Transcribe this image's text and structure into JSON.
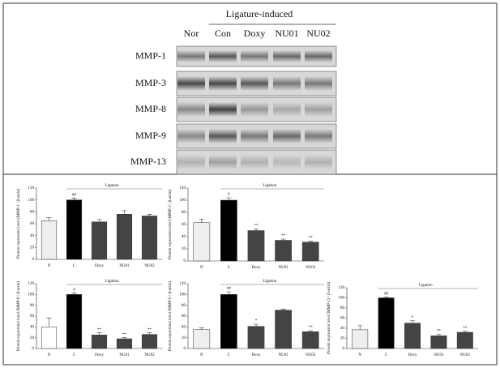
{
  "blot": {
    "group_label": "Ligature-induced",
    "columns": [
      "Nor",
      "Con",
      "Doxy",
      "NU01",
      "NU02"
    ],
    "rows": [
      "MMP-1",
      "MMP-3",
      "MMP-8",
      "MMP-9",
      "MMP-13"
    ]
  },
  "chart_data": [
    {
      "type": "bar",
      "title": "Ligation",
      "y_label": "Protein expression level (MMP-1 / β-actin)",
      "categories": [
        "N",
        "C",
        "Doxy",
        "NU01",
        "NU02"
      ],
      "values": [
        65,
        100,
        63,
        76,
        73
      ],
      "errors": [
        5,
        3,
        4,
        6,
        3
      ],
      "annotations": [
        null,
        "##",
        null,
        null,
        null
      ],
      "colors": [
        "#eeeeee",
        "#000000",
        "#444444",
        "#444444",
        "#444444"
      ],
      "ylim": [
        0,
        120
      ],
      "yticks": [
        0,
        20,
        40,
        60,
        80,
        100,
        120
      ]
    },
    {
      "type": "bar",
      "title": "Ligation",
      "y_label": "Protein expression level (MMP-3 / β-actin)",
      "categories": [
        "N",
        "C",
        "Doxy",
        "NU01",
        "NU02"
      ],
      "values": [
        63,
        100,
        50,
        34,
        31
      ],
      "errors": [
        6,
        4,
        3,
        2,
        2
      ],
      "annotations": [
        null,
        "#",
        "**",
        "**",
        "**"
      ],
      "colors": [
        "#eeeeee",
        "#000000",
        "#444444",
        "#444444",
        "#444444"
      ],
      "ylim": [
        0,
        120
      ],
      "yticks": [
        0,
        20,
        40,
        60,
        80,
        100,
        120
      ]
    },
    {
      "type": "bar",
      "title": "Ligation",
      "y_label": "Protein expression level (MMP-8 / β-actin)",
      "categories": [
        "N",
        "C",
        "Doxy",
        "NU01",
        "NU02"
      ],
      "values": [
        40,
        100,
        25,
        18,
        26
      ],
      "errors": [
        16,
        3,
        4,
        2,
        3
      ],
      "annotations": [
        null,
        "#",
        "**",
        "**",
        "**"
      ],
      "colors": [
        "#ffffff",
        "#000000",
        "#444444",
        "#444444",
        "#444444"
      ],
      "ylim": [
        0,
        120
      ],
      "yticks": [
        0,
        20,
        40,
        60,
        80,
        100,
        120
      ]
    },
    {
      "type": "bar",
      "title": "Ligation",
      "y_label": "Protein expression level (MMP-9 / β-actin)",
      "categories": [
        "N",
        "C",
        "Doxy",
        "NU01",
        "NU02"
      ],
      "values": [
        35,
        100,
        41,
        71,
        31
      ],
      "errors": [
        3,
        5,
        4,
        2,
        2
      ],
      "annotations": [
        null,
        "##",
        "*",
        null,
        "**"
      ],
      "colors": [
        "#eeeeee",
        "#000000",
        "#444444",
        "#444444",
        "#444444"
      ],
      "ylim": [
        0,
        120
      ],
      "yticks": [
        0,
        20,
        40,
        60,
        80,
        100,
        120
      ]
    },
    {
      "type": "bar",
      "title": "Ligation",
      "y_label": "Protein expression level (MMP-13 / β-actin)",
      "categories": [
        "N",
        "C",
        "Doxy",
        "NU01",
        "NU02"
      ],
      "values": [
        37,
        100,
        50,
        25,
        32
      ],
      "errors": [
        8,
        2,
        5,
        3,
        2
      ],
      "annotations": [
        null,
        "##",
        "*",
        "**",
        "**"
      ],
      "colors": [
        "#eeeeee",
        "#000000",
        "#444444",
        "#444444",
        "#444444"
      ],
      "ylim": [
        0,
        120
      ],
      "yticks": [
        0,
        20,
        40,
        60,
        80,
        100,
        120
      ]
    }
  ]
}
